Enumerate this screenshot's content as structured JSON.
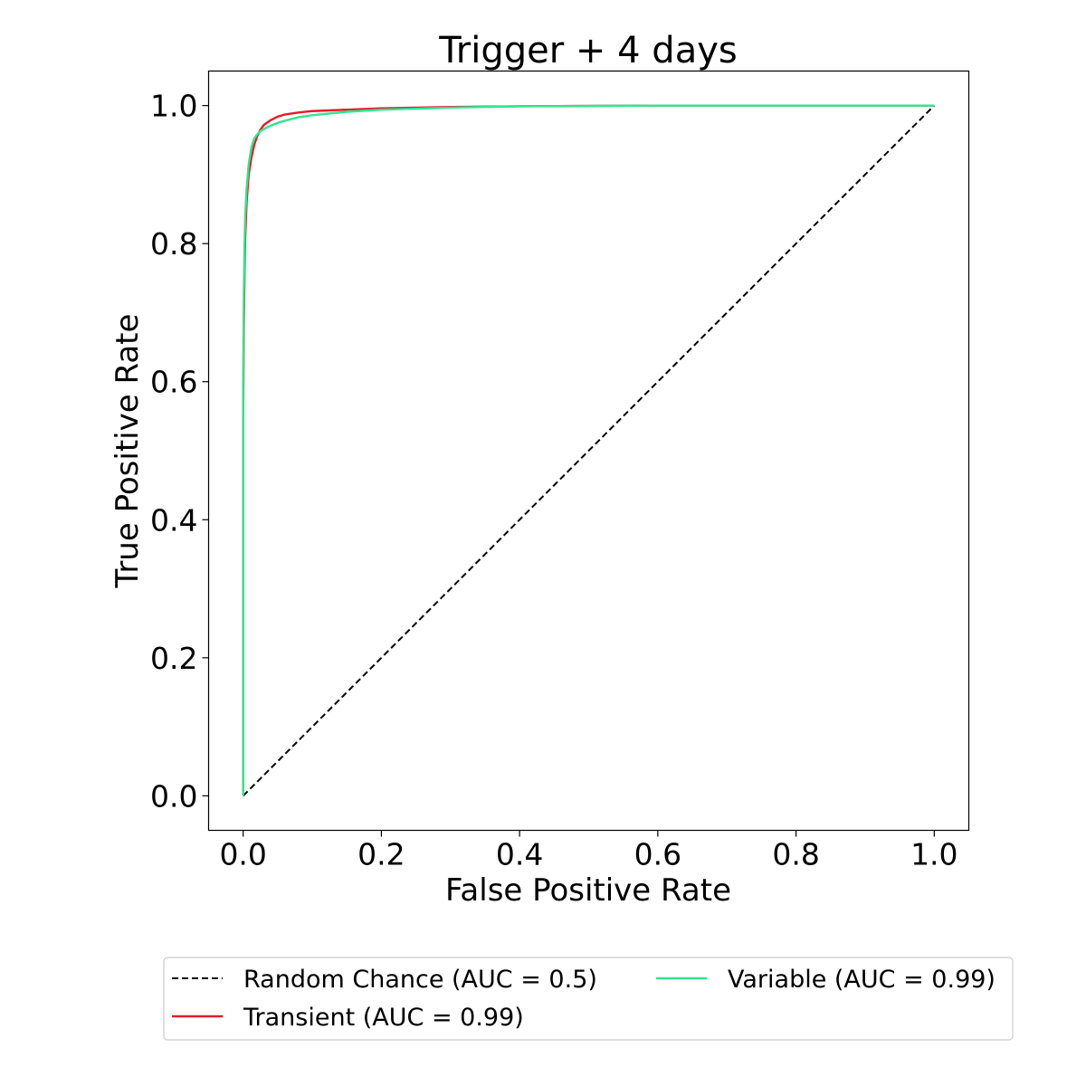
{
  "chart_data": {
    "type": "line",
    "title": "Trigger + 4 days",
    "xlabel": "False Positive Rate",
    "ylabel": "True Positive Rate",
    "xlim": [
      -0.05,
      1.05
    ],
    "ylim": [
      -0.05,
      1.05
    ],
    "xticks": [
      0.0,
      0.2,
      0.4,
      0.6,
      0.8,
      1.0
    ],
    "yticks": [
      0.0,
      0.2,
      0.4,
      0.6,
      0.8,
      1.0
    ],
    "xtick_labels": [
      "0.0",
      "0.2",
      "0.4",
      "0.6",
      "0.8",
      "1.0"
    ],
    "ytick_labels": [
      "0.0",
      "0.2",
      "0.4",
      "0.6",
      "0.8",
      "1.0"
    ],
    "grid": false,
    "legend_placement": "below",
    "series": [
      {
        "name": "Random Chance (AUC = 0.5)",
        "color": "#000000",
        "style": "dashed",
        "x": [
          0.0,
          1.0
        ],
        "y": [
          0.0,
          1.0
        ]
      },
      {
        "name": "Transient (AUC = 0.99)",
        "color": "#e8192c",
        "style": "solid",
        "x": [
          0.0,
          0.0,
          0.001,
          0.002,
          0.003,
          0.005,
          0.008,
          0.012,
          0.016,
          0.02,
          0.025,
          0.03,
          0.04,
          0.05,
          0.06,
          0.08,
          0.1,
          0.15,
          0.2,
          0.3,
          0.4,
          0.6,
          0.8,
          1.0
        ],
        "y": [
          0.0,
          0.55,
          0.68,
          0.76,
          0.81,
          0.86,
          0.9,
          0.925,
          0.943,
          0.955,
          0.965,
          0.972,
          0.979,
          0.984,
          0.987,
          0.99,
          0.992,
          0.994,
          0.996,
          0.998,
          0.999,
          1.0,
          1.0,
          1.0
        ]
      },
      {
        "name": "Variable (AUC = 0.99)",
        "color": "#2de88f",
        "style": "solid",
        "x": [
          0.0,
          0.0,
          0.001,
          0.002,
          0.003,
          0.005,
          0.008,
          0.012,
          0.016,
          0.02,
          0.025,
          0.03,
          0.04,
          0.05,
          0.06,
          0.08,
          0.1,
          0.15,
          0.2,
          0.3,
          0.4,
          0.6,
          0.8,
          1.0
        ],
        "y": [
          0.0,
          0.6,
          0.73,
          0.8,
          0.84,
          0.88,
          0.915,
          0.94,
          0.952,
          0.958,
          0.963,
          0.966,
          0.971,
          0.975,
          0.978,
          0.983,
          0.986,
          0.991,
          0.994,
          0.997,
          0.999,
          1.0,
          1.0,
          1.0
        ]
      }
    ]
  }
}
